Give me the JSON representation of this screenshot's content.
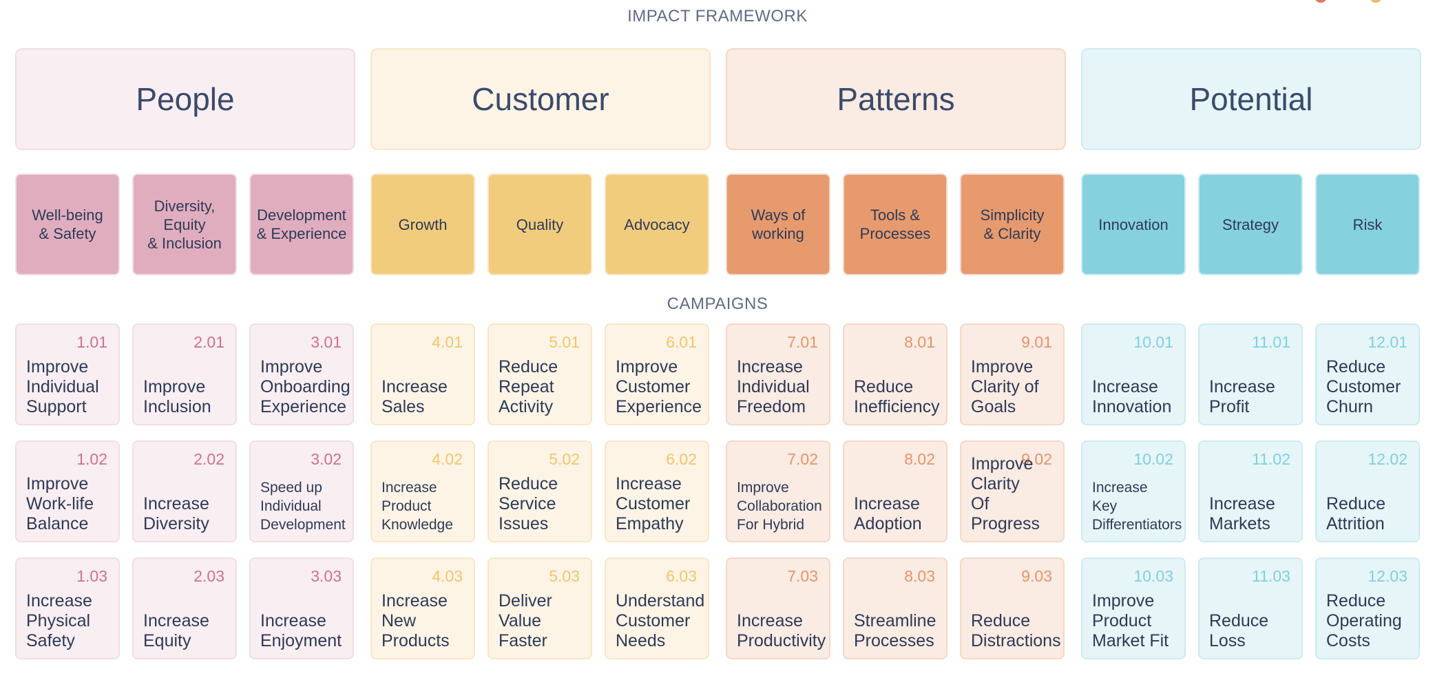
{
  "titles": {
    "framework": "IMPACT FRAMEWORK",
    "campaigns": "CAMPAIGNS"
  },
  "colors": {
    "people": {
      "light": "#f9eef2",
      "mid": "#e0adbf",
      "text": "#cf6f92",
      "border": "#f1dde5"
    },
    "customer": {
      "light": "#fdf4e6",
      "mid": "#f2cc7d",
      "text": "#f0c66a",
      "border": "#f8e7c6"
    },
    "patterns": {
      "light": "#faebe3",
      "mid": "#e79a6e",
      "text": "#e4956a",
      "border": "#f3d8c9"
    },
    "potential": {
      "light": "#e6f5f8",
      "mid": "#86d1de",
      "text": "#7fcfdc",
      "border": "#cdebf0"
    }
  },
  "pillars": [
    {
      "label": "People",
      "theme": "people"
    },
    {
      "label": "Customer",
      "theme": "customer"
    },
    {
      "label": "Patterns",
      "theme": "patterns"
    },
    {
      "label": "Potential",
      "theme": "potential"
    }
  ],
  "categories": [
    {
      "theme": "people",
      "items": [
        "Well-being\n& Safety",
        "Diversity,\nEquity\n& Inclusion",
        "Development\n& Experience"
      ]
    },
    {
      "theme": "customer",
      "items": [
        "Growth",
        "Quality",
        "Advocacy"
      ]
    },
    {
      "theme": "patterns",
      "items": [
        "Ways of\nworking",
        "Tools &\nProcesses",
        "Simplicity\n& Clarity"
      ]
    },
    {
      "theme": "potential",
      "items": [
        "Innovation",
        "Strategy",
        "Risk"
      ]
    }
  ],
  "campaigns": [
    {
      "theme": "people",
      "columns": [
        [
          {
            "num": "1.01",
            "label": "Improve\nIndividual\nSupport"
          },
          {
            "num": "1.02",
            "label": "Improve\nWork-life\nBalance"
          },
          {
            "num": "1.03",
            "label": "Increase\nPhysical\nSafety"
          }
        ],
        [
          {
            "num": "2.01",
            "label": "Improve\nInclusion"
          },
          {
            "num": "2.02",
            "label": "Increase\nDiversity"
          },
          {
            "num": "2.03",
            "label": "Increase\nEquity"
          }
        ],
        [
          {
            "num": "3.01",
            "label": "Improve\nOnboarding\nExperience"
          },
          {
            "num": "3.02",
            "label": "Speed up\nIndividual\nDevelopment",
            "small": true
          },
          {
            "num": "3.03",
            "label": "Increase\nEnjoyment"
          }
        ]
      ]
    },
    {
      "theme": "customer",
      "columns": [
        [
          {
            "num": "4.01",
            "label": "Increase\nSales"
          },
          {
            "num": "4.02",
            "label": "Increase\nProduct\nKnowledge",
            "small": true
          },
          {
            "num": "4.03",
            "label": "Increase\nNew\nProducts"
          }
        ],
        [
          {
            "num": "5.01",
            "label": "Reduce\nRepeat\nActivity"
          },
          {
            "num": "5.02",
            "label": "Reduce\nService\nIssues"
          },
          {
            "num": "5.03",
            "label": "Deliver\nValue\nFaster"
          }
        ],
        [
          {
            "num": "6.01",
            "label": "Improve\nCustomer\nExperience"
          },
          {
            "num": "6.02",
            "label": "Increase\nCustomer\nEmpathy"
          },
          {
            "num": "6.03",
            "label": "Understand\nCustomer\nNeeds"
          }
        ]
      ]
    },
    {
      "theme": "patterns",
      "columns": [
        [
          {
            "num": "7.01",
            "label": "Increase\nIndividual\nFreedom"
          },
          {
            "num": "7.02",
            "label": "Improve\nCollaboration\nFor Hybrid",
            "small": true
          },
          {
            "num": "7.03",
            "label": "Increase\nProductivity"
          }
        ],
        [
          {
            "num": "8.01",
            "label": "Reduce\nInefficiency"
          },
          {
            "num": "8.02",
            "label": "Increase\nAdoption"
          },
          {
            "num": "8.03",
            "label": "Streamline\nProcesses"
          }
        ],
        [
          {
            "num": "9.01",
            "label": "Improve\nClarity of\nGoals"
          },
          {
            "num": "9.02",
            "label": "Improve\nClarity\nOf Progress"
          },
          {
            "num": "9.03",
            "label": "Reduce\nDistractions"
          }
        ]
      ]
    },
    {
      "theme": "potential",
      "columns": [
        [
          {
            "num": "10.01",
            "label": "Increase\nInnovation"
          },
          {
            "num": "10.02",
            "label": "Increase\nKey\nDifferentiators",
            "small": true
          },
          {
            "num": "10.03",
            "label": "Improve\nProduct\nMarket Fit"
          }
        ],
        [
          {
            "num": "11.01",
            "label": "Increase\nProfit"
          },
          {
            "num": "11.02",
            "label": "Increase\nMarkets"
          },
          {
            "num": "11.03",
            "label": "Reduce\nLoss"
          }
        ],
        [
          {
            "num": "12.01",
            "label": "Reduce\nCustomer\nChurn"
          },
          {
            "num": "12.02",
            "label": "Reduce\nAttrition"
          },
          {
            "num": "12.03",
            "label": "Reduce\nOperating\nCosts"
          }
        ]
      ]
    }
  ]
}
